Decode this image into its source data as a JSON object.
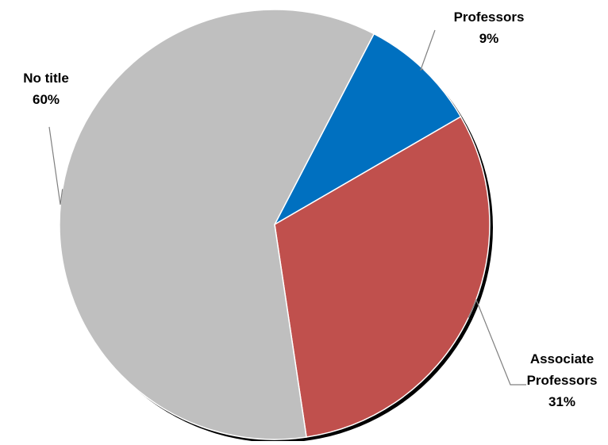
{
  "chart_data": {
    "type": "pie",
    "title": "",
    "slices": [
      {
        "name": "Professors",
        "value": 9,
        "label_lines": [
          "Professors",
          "9%"
        ],
        "color": "#0070C0"
      },
      {
        "name": "Associate Professors",
        "value": 31,
        "label_lines": [
          "Associate",
          "Professors",
          "31%"
        ],
        "color": "#C0504D"
      },
      {
        "name": "No title",
        "value": 60,
        "label_lines": [
          "No title",
          "60%"
        ],
        "color": "#BFBFBF"
      }
    ],
    "legend": "none",
    "labels": "outside with leader lines"
  }
}
